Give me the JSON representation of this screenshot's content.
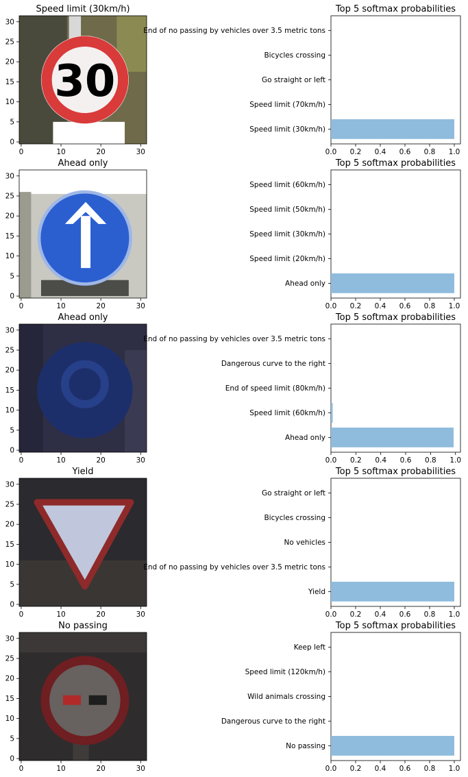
{
  "chart_data": [
    {
      "type": "image",
      "title": "Speed limit (30km/h)",
      "sign": "speed-30",
      "x_ticks": [
        0,
        10,
        20,
        30
      ],
      "y_ticks": [
        0,
        5,
        10,
        15,
        20,
        25,
        30
      ],
      "xlim": [
        -0.5,
        31.5
      ],
      "ylim": [
        31.5,
        -0.5
      ]
    },
    {
      "type": "bar",
      "orientation": "horizontal",
      "title": "Top 5 softmax probabilities",
      "categories": [
        "Speed limit (30km/h)",
        "Speed limit (70km/h)",
        "Go straight or left",
        "Bicycles crossing",
        "End of no passing by vehicles over 3.5 metric tons"
      ],
      "values": [
        1.0,
        0.0,
        0.0,
        0.0,
        0.0
      ],
      "x_ticks": [
        "0.0",
        "0.2",
        "0.4",
        "0.6",
        "0.8",
        "1.0"
      ],
      "xlim": [
        0,
        1.05
      ],
      "color": "#8fbcdc"
    },
    {
      "type": "image",
      "title": "Ahead only",
      "sign": "ahead-only",
      "x_ticks": [
        0,
        10,
        20,
        30
      ],
      "y_ticks": [
        0,
        5,
        10,
        15,
        20,
        25,
        30
      ],
      "xlim": [
        -0.5,
        31.5
      ],
      "ylim": [
        31.5,
        -0.5
      ]
    },
    {
      "type": "bar",
      "orientation": "horizontal",
      "title": "Top 5 softmax probabilities",
      "categories": [
        "Ahead only",
        "Speed limit (20km/h)",
        "Speed limit (30km/h)",
        "Speed limit (50km/h)",
        "Speed limit (60km/h)"
      ],
      "values": [
        1.0,
        0.0,
        0.0,
        0.0,
        0.0
      ],
      "x_ticks": [
        "0.0",
        "0.2",
        "0.4",
        "0.6",
        "0.8",
        "1.0"
      ],
      "xlim": [
        0,
        1.05
      ],
      "color": "#8fbcdc"
    },
    {
      "type": "image",
      "title": "Ahead only",
      "sign": "ahead-only-dark",
      "x_ticks": [
        0,
        10,
        20,
        30
      ],
      "y_ticks": [
        0,
        5,
        10,
        15,
        20,
        25,
        30
      ],
      "xlim": [
        -0.5,
        31.5
      ],
      "ylim": [
        31.5,
        -0.5
      ]
    },
    {
      "type": "bar",
      "orientation": "horizontal",
      "title": "Top 5 softmax probabilities",
      "categories": [
        "Ahead only",
        "Speed limit (60km/h)",
        "End of speed limit (80km/h)",
        "Dangerous curve to the right",
        "End of no passing by vehicles over 3.5 metric tons"
      ],
      "values": [
        0.985,
        0.014,
        0.0,
        0.0,
        0.0
      ],
      "x_ticks": [
        "0.0",
        "0.2",
        "0.4",
        "0.6",
        "0.8",
        "1.0"
      ],
      "xlim": [
        0,
        1.04
      ],
      "color": "#8fbcdc"
    },
    {
      "type": "image",
      "title": "Yield",
      "sign": "yield",
      "x_ticks": [
        0,
        10,
        20,
        30
      ],
      "y_ticks": [
        0,
        5,
        10,
        15,
        20,
        25,
        30
      ],
      "xlim": [
        -0.5,
        31.5
      ],
      "ylim": [
        31.5,
        -0.5
      ]
    },
    {
      "type": "bar",
      "orientation": "horizontal",
      "title": "Top 5 softmax probabilities",
      "categories": [
        "Yield",
        "End of no passing by vehicles over 3.5 metric tons",
        "No vehicles",
        "Bicycles crossing",
        "Go straight or left"
      ],
      "values": [
        1.0,
        0.0,
        0.0,
        0.0,
        0.0
      ],
      "x_ticks": [
        "0.0",
        "0.2",
        "0.4",
        "0.6",
        "0.8",
        "1.0"
      ],
      "xlim": [
        0,
        1.05
      ],
      "color": "#8fbcdc"
    },
    {
      "type": "image",
      "title": "No passing",
      "sign": "no-passing",
      "x_ticks": [
        0,
        10,
        20,
        30
      ],
      "y_ticks": [
        0,
        5,
        10,
        15,
        20,
        25,
        30
      ],
      "xlim": [
        -0.5,
        31.5
      ],
      "ylim": [
        31.5,
        -0.5
      ]
    },
    {
      "type": "bar",
      "orientation": "horizontal",
      "title": "Top 5 softmax probabilities",
      "categories": [
        "No passing",
        "Dangerous curve to the right",
        "Wild animals crossing",
        "Speed limit (120km/h)",
        "Keep left"
      ],
      "values": [
        1.0,
        0.0,
        0.0,
        0.0,
        0.0
      ],
      "x_ticks": [
        "0.0",
        "0.2",
        "0.4",
        "0.6",
        "0.8",
        "1.0"
      ],
      "xlim": [
        0,
        1.05
      ],
      "color": "#8fbcdc"
    }
  ]
}
